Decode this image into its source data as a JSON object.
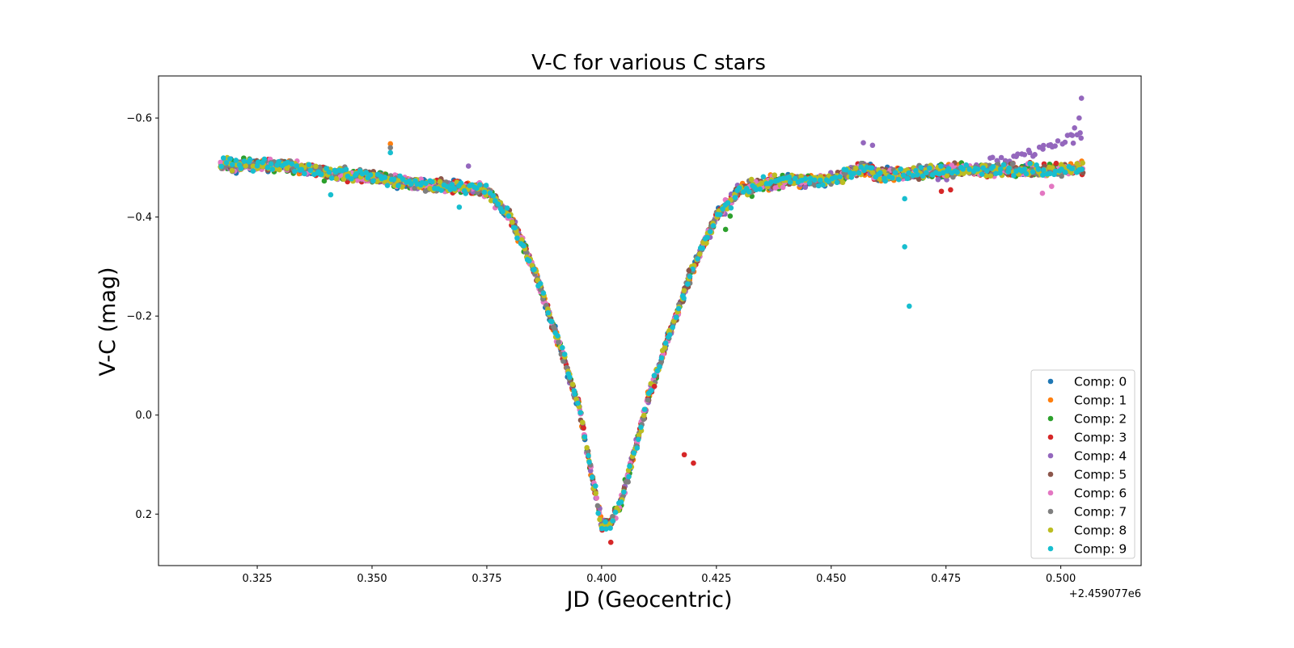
{
  "chart_data": {
    "type": "scatter",
    "title": "V-C for various C stars",
    "xlabel": "JD (Geocentric)",
    "ylabel": "V-C (mag)",
    "x_offset_label": "+2.459077e6",
    "x_offset": 2459077,
    "xlim": [
      2459077.3035,
      2459077.5175
    ],
    "ylim": [
      0.304,
      -0.685
    ],
    "y_inverted": true,
    "grid": false,
    "legend_position": "lower-right",
    "x_ticks": [
      {
        "value": 2459077.325,
        "label": "0.325"
      },
      {
        "value": 2459077.35,
        "label": "0.350"
      },
      {
        "value": 2459077.375,
        "label": "0.375"
      },
      {
        "value": 2459077.4,
        "label": "0.400"
      },
      {
        "value": 2459077.425,
        "label": "0.425"
      },
      {
        "value": 2459077.45,
        "label": "0.450"
      },
      {
        "value": 2459077.475,
        "label": "0.475"
      },
      {
        "value": 2459077.5,
        "label": "0.500"
      }
    ],
    "y_ticks": [
      {
        "value": -0.6,
        "label": "−0.6"
      },
      {
        "value": -0.4,
        "label": "−0.4"
      },
      {
        "value": -0.2,
        "label": "−0.2"
      },
      {
        "value": 0.0,
        "label": "0.0"
      },
      {
        "value": 0.2,
        "label": "0.2"
      }
    ],
    "light_curve": {
      "x": [
        2459077.317,
        2459077.33,
        2459077.34,
        2459077.35,
        2459077.36,
        2459077.37,
        2459077.375,
        2459077.38,
        2459077.385,
        2459077.39,
        2459077.395,
        2459077.398,
        2459077.4,
        2459077.402,
        2459077.404,
        2459077.407,
        2459077.41,
        2459077.415,
        2459077.42,
        2459077.425,
        2459077.43,
        2459077.44,
        2459077.45,
        2459077.457,
        2459077.46,
        2459077.47,
        2459077.48,
        2459077.49,
        2459077.5,
        2459077.505
      ],
      "y": [
        -0.505,
        -0.505,
        -0.49,
        -0.48,
        -0.465,
        -0.46,
        -0.455,
        -0.4,
        -0.3,
        -0.165,
        -0.02,
        0.13,
        0.222,
        0.222,
        0.18,
        0.08,
        -0.03,
        -0.17,
        -0.3,
        -0.4,
        -0.455,
        -0.475,
        -0.475,
        -0.5,
        -0.485,
        -0.49,
        -0.495,
        -0.495,
        -0.495,
        -0.5
      ]
    },
    "jitter_mag": 0.012,
    "n_points_per_series": 300,
    "series": [
      {
        "name": "Comp: 0",
        "color": "#1f77b4"
      },
      {
        "name": "Comp: 1",
        "color": "#ff7f0e"
      },
      {
        "name": "Comp: 2",
        "color": "#2ca02c"
      },
      {
        "name": "Comp: 3",
        "color": "#d62728"
      },
      {
        "name": "Comp: 4",
        "color": "#9467bd"
      },
      {
        "name": "Comp: 5",
        "color": "#8c564b"
      },
      {
        "name": "Comp: 6",
        "color": "#e377c2"
      },
      {
        "name": "Comp: 7",
        "color": "#7f7f7f"
      },
      {
        "name": "Comp: 8",
        "color": "#bcbd22"
      },
      {
        "name": "Comp: 9",
        "color": "#17becf"
      }
    ],
    "series_trends": [
      {
        "series": "Comp: 4",
        "x_start": 2459077.48,
        "x_end": 2459077.505,
        "shift_start": 0.0,
        "shift_end": -0.07
      }
    ],
    "outliers": [
      {
        "series": "Comp: 3",
        "x": 2459077.418,
        "y": 0.08
      },
      {
        "series": "Comp: 3",
        "x": 2459077.42,
        "y": 0.097
      },
      {
        "series": "Comp: 9",
        "x": 2459077.466,
        "y": -0.34
      },
      {
        "series": "Comp: 9",
        "x": 2459077.467,
        "y": -0.22
      },
      {
        "series": "Comp: 9",
        "x": 2459077.341,
        "y": -0.445
      },
      {
        "series": "Comp: 9",
        "x": 2459077.369,
        "y": -0.42
      },
      {
        "series": "Comp: 9",
        "x": 2459077.466,
        "y": -0.437
      },
      {
        "series": "Comp: 4",
        "x": 2459077.5045,
        "y": -0.64
      },
      {
        "series": "Comp: 4",
        "x": 2459077.504,
        "y": -0.6
      },
      {
        "series": "Comp: 4",
        "x": 2459077.503,
        "y": -0.58
      },
      {
        "series": "Comp: 4",
        "x": 2459077.5025,
        "y": -0.565
      },
      {
        "series": "Comp: 2",
        "x": 2459077.428,
        "y": -0.402
      },
      {
        "series": "Comp: 2",
        "x": 2459077.427,
        "y": -0.375
      },
      {
        "series": "Comp: 3",
        "x": 2459077.4115,
        "y": -0.058
      },
      {
        "series": "Comp: 3",
        "x": 2459077.402,
        "y": 0.257
      },
      {
        "series": "Comp: 5",
        "x": 2459077.419,
        "y": -0.292
      },
      {
        "series": "Comp: 4",
        "x": 2459077.371,
        "y": -0.503
      },
      {
        "series": "Comp: 1",
        "x": 2459077.354,
        "y": -0.548
      },
      {
        "series": "Comp: 7",
        "x": 2459077.354,
        "y": -0.54
      },
      {
        "series": "Comp: 9",
        "x": 2459077.354,
        "y": -0.53
      },
      {
        "series": "Comp: 4",
        "x": 2459077.457,
        "y": -0.55
      },
      {
        "series": "Comp: 4",
        "x": 2459077.459,
        "y": -0.545
      },
      {
        "series": "Comp: 3",
        "x": 2459077.474,
        "y": -0.452
      },
      {
        "series": "Comp: 3",
        "x": 2459077.476,
        "y": -0.455
      },
      {
        "series": "Comp: 6",
        "x": 2459077.498,
        "y": -0.462
      },
      {
        "series": "Comp: 6",
        "x": 2459077.496,
        "y": -0.448
      },
      {
        "series": "Comp: 6",
        "x": 2459077.4395,
        "y": -0.46
      }
    ]
  }
}
